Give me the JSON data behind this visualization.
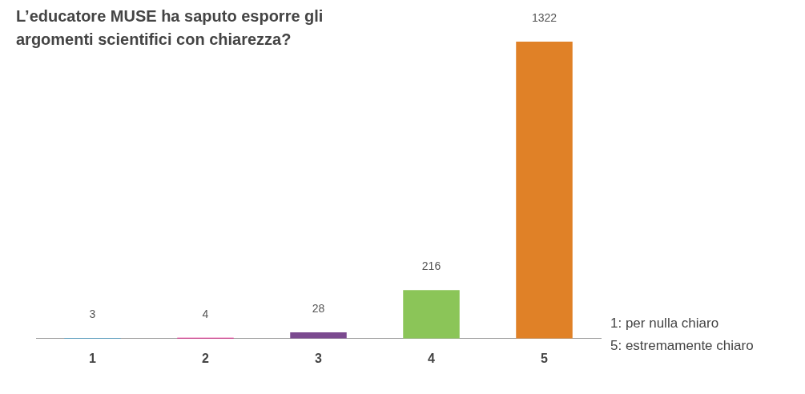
{
  "chart_data": {
    "type": "bar",
    "title": "L’educatore MUSE ha saputo esporre gli argomenti scientifici con chiarezza?",
    "categories": [
      "1",
      "2",
      "3",
      "4",
      "5"
    ],
    "values": [
      3,
      4,
      28,
      216,
      1322
    ],
    "colors": [
      "#2a9fd8",
      "#e6007e",
      "#7b4a8f",
      "#8bc558",
      "#e08127"
    ],
    "data_labels": true,
    "grid": false,
    "legend": false,
    "tick_labels": "x",
    "annotations": [
      "1: per nulla chiaro",
      "5: estremamente chiaro"
    ]
  }
}
